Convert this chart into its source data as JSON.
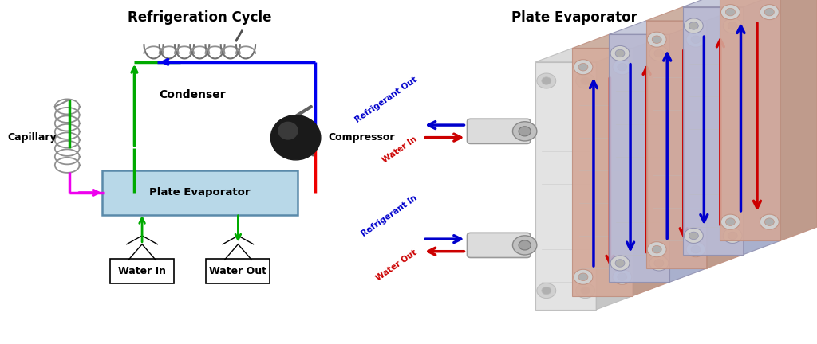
{
  "title_left": "Refrigeration Cycle",
  "title_right": "Plate Evaporator",
  "bg_color": "#ffffff",
  "left": {
    "box_label": "Plate Evaporator",
    "box_facecolor": "#b8d8e8",
    "box_edgecolor": "#5a8aaa",
    "condenser_label": "Condenser",
    "compressor_label": "Compressor",
    "capillary_label": "Capillary",
    "water_in_label": "Water In",
    "water_out_label": "Water Out",
    "green": "#00aa00",
    "blue": "#0000ee",
    "red": "#ee0000",
    "magenta": "#ee00ee",
    "gray": "#888888"
  },
  "right": {
    "ref_out": "Refrigerant Out",
    "water_in": "Water In",
    "ref_in": "Refrigerant In",
    "water_out": "Water Out",
    "blue": "#0000cc",
    "red": "#cc0000",
    "copper": "#d4a898",
    "lavender": "#b8bcd8",
    "white_plate": "#e0e0e0"
  }
}
